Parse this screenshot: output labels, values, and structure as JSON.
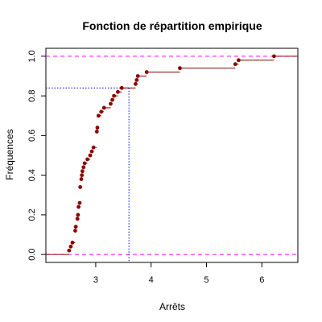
{
  "chart_data": {
    "type": "line",
    "title": "Fonction de répartition empirique",
    "xlabel": "Arrêts",
    "ylabel": "Fréquences",
    "xlim": [
      2.1,
      6.65
    ],
    "ylim": [
      -0.04,
      1.04
    ],
    "xticks": [
      3,
      4,
      5,
      6
    ],
    "yticks": [
      0.0,
      0.2,
      0.4,
      0.6,
      0.8,
      1.0
    ],
    "xtick_labels": [
      "3",
      "4",
      "5",
      "6"
    ],
    "ytick_labels": [
      "0.0",
      "0.2",
      "0.4",
      "0.6",
      "0.8",
      "1.0"
    ],
    "grid": false,
    "step_color": "#8b0000",
    "point_color": "#8b0000",
    "reference_lines": {
      "y_values": [
        0,
        1
      ],
      "color": "#ff00ff",
      "style": "dashed"
    },
    "highlight": {
      "x": 3.6,
      "y": 0.84,
      "color": "#0000cd",
      "style": "dotted"
    },
    "points": [
      {
        "x": 2.52,
        "y": 0.02
      },
      {
        "x": 2.55,
        "y": 0.04
      },
      {
        "x": 2.58,
        "y": 0.06
      },
      {
        "x": 2.63,
        "y": 0.12
      },
      {
        "x": 2.64,
        "y": 0.14
      },
      {
        "x": 2.67,
        "y": 0.18
      },
      {
        "x": 2.68,
        "y": 0.2
      },
      {
        "x": 2.69,
        "y": 0.24
      },
      {
        "x": 2.71,
        "y": 0.26
      },
      {
        "x": 2.72,
        "y": 0.34
      },
      {
        "x": 2.74,
        "y": 0.38
      },
      {
        "x": 2.75,
        "y": 0.4
      },
      {
        "x": 2.76,
        "y": 0.42
      },
      {
        "x": 2.78,
        "y": 0.44
      },
      {
        "x": 2.8,
        "y": 0.46
      },
      {
        "x": 2.85,
        "y": 0.48
      },
      {
        "x": 2.9,
        "y": 0.5
      },
      {
        "x": 2.93,
        "y": 0.52
      },
      {
        "x": 2.96,
        "y": 0.54
      },
      {
        "x": 3.02,
        "y": 0.62
      },
      {
        "x": 3.03,
        "y": 0.64
      },
      {
        "x": 3.05,
        "y": 0.7
      },
      {
        "x": 3.1,
        "y": 0.72
      },
      {
        "x": 3.15,
        "y": 0.74
      },
      {
        "x": 3.27,
        "y": 0.76
      },
      {
        "x": 3.3,
        "y": 0.78
      },
      {
        "x": 3.33,
        "y": 0.8
      },
      {
        "x": 3.4,
        "y": 0.82
      },
      {
        "x": 3.47,
        "y": 0.84
      },
      {
        "x": 3.72,
        "y": 0.86
      },
      {
        "x": 3.74,
        "y": 0.88
      },
      {
        "x": 3.76,
        "y": 0.9
      },
      {
        "x": 3.92,
        "y": 0.92
      },
      {
        "x": 4.52,
        "y": 0.94
      },
      {
        "x": 5.52,
        "y": 0.96
      },
      {
        "x": 5.58,
        "y": 0.98
      },
      {
        "x": 6.22,
        "y": 1.0
      }
    ]
  }
}
